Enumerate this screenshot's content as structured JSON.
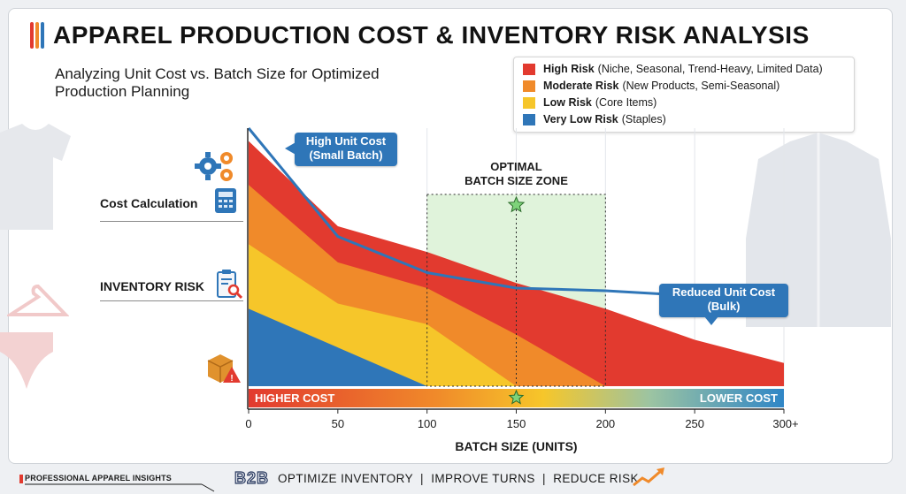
{
  "title": "APPAREL PRODUCTION COST & INVENTORY RISK ANALYSIS",
  "subtitle": "Analyzing Unit Cost vs. Batch Size for Optimized Production Planning",
  "colors": {
    "high": "#e23a2f",
    "moderate": "#f08a2a",
    "low": "#f6c62a",
    "very_low": "#2f76b8",
    "zone": "#d6efcf"
  },
  "legend": [
    {
      "name": "High Risk",
      "desc": "(Niche, Seasonal, Trend-Heavy, Limited Data)",
      "color": "#e23a2f"
    },
    {
      "name": "Moderate Risk",
      "desc": "(New Products, Semi-Seasonal)",
      "color": "#f08a2a"
    },
    {
      "name": "Low Risk",
      "desc": "(Core Items)",
      "color": "#f6c62a"
    },
    {
      "name": "Very Low Risk",
      "desc": "(Staples)",
      "color": "#2f76b8"
    }
  ],
  "side_labels": {
    "cost": "Cost Calculation",
    "risk": "INVENTORY RISK"
  },
  "icons": [
    "gears-icon",
    "calculator-icon",
    "clipboard-magnifier-icon",
    "box-warning-icon",
    "tshirt-icon",
    "hanger-icon",
    "jacket-icon",
    "trend-arrow-icon"
  ],
  "callouts": {
    "high": [
      "High Unit Cost",
      "(Small Batch)"
    ],
    "low": [
      "Reduced Unit Cost",
      "(Bulk)"
    ],
    "zone": [
      "OPTIMAL",
      "BATCH SIZE ZONE"
    ]
  },
  "cost_bar": {
    "left": "HIGHER COST",
    "right": "LOWER COST"
  },
  "footer": {
    "left": "PROFESSIONAL APPAREL INSIGHTS",
    "brand": "B2B",
    "tagline": "OPTIMIZE INVENTORY  |  IMPROVE TURNS  |  REDUCE RISK"
  },
  "chart_data": {
    "type": "area",
    "xlabel": "BATCH SIZE (UNITS)",
    "ylabel": "",
    "x_ticks": [
      "0",
      "50",
      "100",
      "150",
      "200",
      "250",
      "300+"
    ],
    "xlim": [
      0,
      300
    ],
    "optimal_zone": [
      100,
      200
    ],
    "optimal_marker_x": 150,
    "series": [
      {
        "name": "High Risk",
        "x": [
          0,
          50,
          100,
          150,
          200,
          250,
          300
        ],
        "values": [
          0.95,
          0.62,
          0.52,
          0.4,
          0.3,
          0.18,
          0.09
        ]
      },
      {
        "name": "Moderate Risk",
        "x": [
          0,
          50,
          100,
          150,
          200
        ],
        "values": [
          0.78,
          0.48,
          0.38,
          0.2,
          0.0
        ]
      },
      {
        "name": "Low Risk",
        "x": [
          0,
          50,
          100,
          150
        ],
        "values": [
          0.55,
          0.32,
          0.24,
          0.0
        ]
      },
      {
        "name": "Very Low Risk",
        "x": [
          0,
          100
        ],
        "values": [
          0.3,
          0.0
        ]
      }
    ],
    "unit_cost_line": {
      "x": [
        0,
        50,
        100,
        150,
        200,
        250,
        300
      ],
      "values": [
        1.0,
        0.58,
        0.44,
        0.38,
        0.37,
        0.35,
        0.3
      ]
    }
  }
}
